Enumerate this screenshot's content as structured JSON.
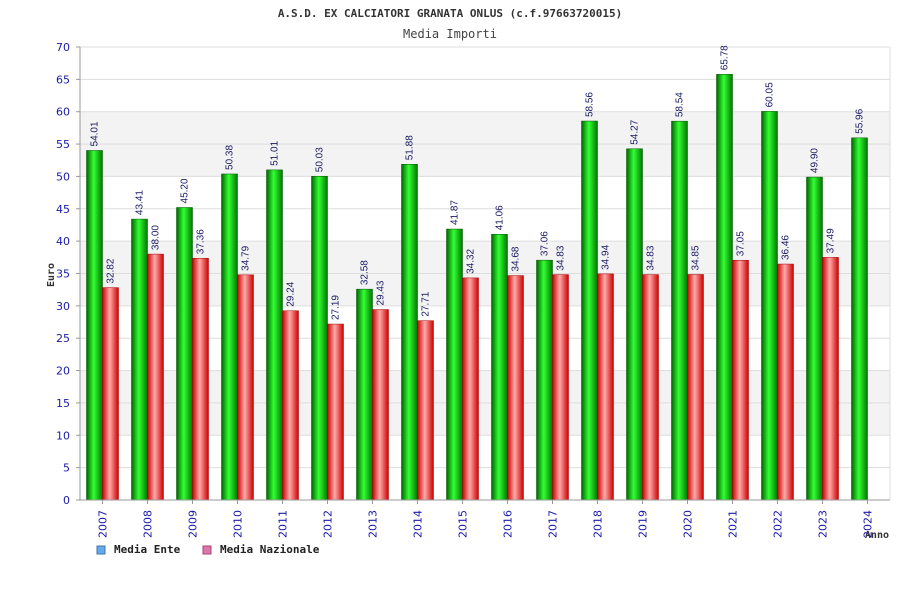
{
  "chart_data": {
    "type": "bar",
    "title": "A.S.D. EX CALCIATORI GRANATA ONLUS (c.f.97663720015)",
    "subtitle": "Media Importi",
    "xlabel": "Anno",
    "ylabel": "Euro",
    "ylim": [
      0,
      70
    ],
    "ytick_step": 5,
    "grid": true,
    "legend_position": "bottom-left",
    "categories": [
      "2007",
      "2008",
      "2009",
      "2010",
      "2011",
      "2012",
      "2013",
      "2014",
      "2015",
      "2016",
      "2017",
      "2018",
      "2019",
      "2020",
      "2021",
      "2022",
      "2023",
      "2024"
    ],
    "series": [
      {
        "name": "Media Ente",
        "color": "#00cc00",
        "legend_color": "#66aaee",
        "values": [
          54.01,
          43.41,
          45.2,
          50.38,
          51.01,
          50.03,
          32.58,
          51.88,
          41.87,
          41.06,
          37.06,
          58.56,
          54.27,
          58.54,
          65.78,
          60.05,
          49.9,
          55.96
        ],
        "labels": [
          "54.01",
          "43.41",
          "45.20",
          "50.38",
          "51.01",
          "50.03",
          "32.58",
          "51.88",
          "41.87",
          "41.06",
          "37.06",
          "58.56",
          "54.27",
          "58.54",
          "65.78",
          "60.05",
          "49.90",
          "55.96"
        ]
      },
      {
        "name": "Media Nazionale",
        "color": "#ee2222",
        "legend_color": "#dd77aa",
        "values": [
          32.82,
          38.0,
          37.36,
          34.79,
          29.24,
          27.19,
          29.43,
          27.71,
          34.32,
          34.68,
          34.83,
          34.94,
          34.83,
          34.85,
          37.05,
          36.46,
          37.49,
          null
        ],
        "labels": [
          "32.82",
          "38.00",
          "37.36",
          "34.79",
          "29.24",
          "27.19",
          "29.43",
          "27.71",
          "34.32",
          "34.68",
          "34.83",
          "34.94",
          "34.83",
          "34.85",
          "37.05",
          "36.46",
          "37.49",
          ""
        ]
      }
    ]
  }
}
